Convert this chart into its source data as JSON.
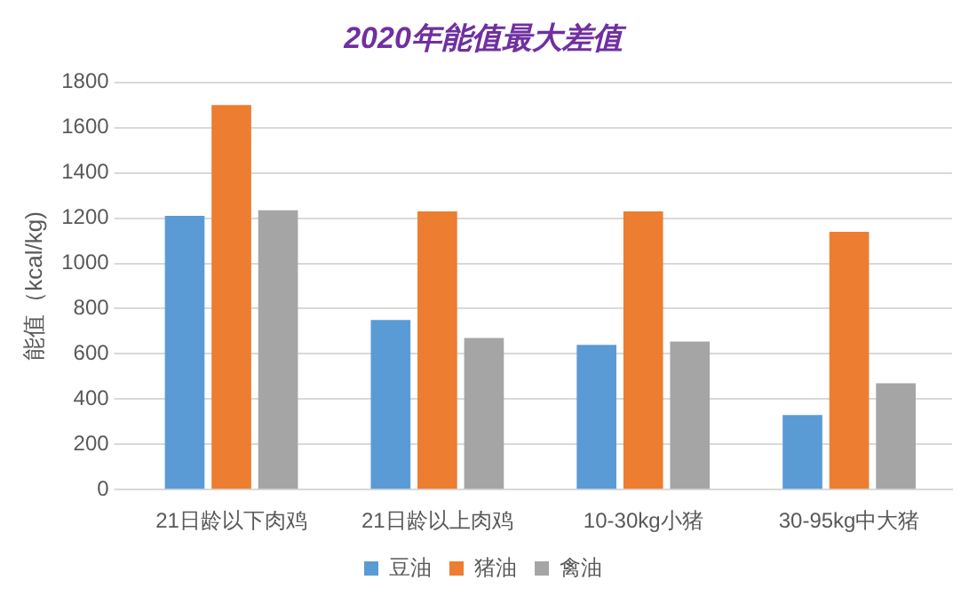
{
  "chart_data": {
    "type": "bar",
    "title": "2020年能值最大差值",
    "ylabel": "能值（kcal/kg)",
    "categories": [
      "21日龄以下肉鸡",
      "21日龄以上肉鸡",
      "10-30kg小猪",
      "30-95kg中大猪"
    ],
    "series": [
      {
        "name": "豆油",
        "color": "#5b9bd5",
        "values": [
          1210,
          750,
          640,
          330
        ]
      },
      {
        "name": "猪油",
        "color": "#ed7d31",
        "values": [
          1700,
          1230,
          1230,
          1140
        ]
      },
      {
        "name": "禽油",
        "color": "#a5a5a5",
        "values": [
          1235,
          670,
          655,
          470
        ]
      }
    ],
    "ylim": [
      0,
      1800
    ],
    "yticks": [
      0,
      200,
      400,
      600,
      800,
      1000,
      1200,
      1400,
      1600,
      1800
    ],
    "grid": "y",
    "legend": "bottom"
  }
}
